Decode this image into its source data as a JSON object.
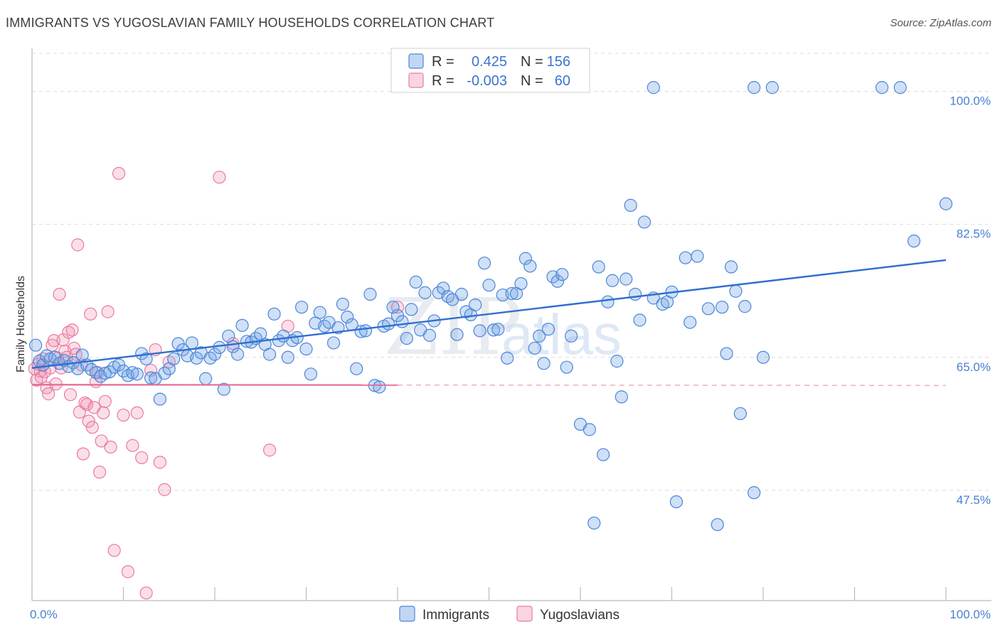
{
  "header": {
    "title": "IMMIGRANTS VS YUGOSLAVIAN FAMILY HOUSEHOLDS CORRELATION CHART",
    "source": "Source: ZipAtlas.com"
  },
  "watermark": {
    "zip": "ZIP",
    "atlas": "atlas"
  },
  "colors": {
    "blue": "#4a86d8",
    "blue_fill": "rgba(120,165,230,0.35)",
    "blue_line": "#2f6fd0",
    "pink": "#e97aa0",
    "pink_fill": "rgba(240,150,180,0.30)",
    "pink_line": "#e36a93",
    "axis_label": "#4a7fd0",
    "grid": "#dcdcdc"
  },
  "legend": {
    "rows": [
      {
        "r_label": "R =",
        "r_value": "0.425",
        "n_label": "N =",
        "n_value": "156"
      },
      {
        "r_label": "R =",
        "r_value": "-0.003",
        "n_label": "N =",
        "n_value": "60"
      }
    ]
  },
  "bottom_legend": {
    "immigrants": "Immigrants",
    "yugoslavians": "Yugoslavians"
  },
  "chart_data": {
    "type": "scatter",
    "title": "IMMIGRANTS VS YUGOSLAVIAN FAMILY HOUSEHOLDS CORRELATION CHART",
    "xlabel": "",
    "ylabel": "Family Households",
    "xlim": [
      0,
      100
    ],
    "ylim": [
      33,
      105
    ],
    "x_tick_labels": [
      "0.0%",
      "100.0%"
    ],
    "y_ticks": [
      {
        "value": 47.5,
        "label": "47.5%"
      },
      {
        "value": 65.0,
        "label": "65.0%"
      },
      {
        "value": 82.5,
        "label": "82.5%"
      },
      {
        "value": 100.0,
        "label": "100.0%"
      }
    ],
    "legend_position": "top-center",
    "series": [
      {
        "name": "Immigrants",
        "r": 0.425,
        "n": 156,
        "trend": {
          "x": [
            0,
            100
          ],
          "y": [
            63.6,
            77.8
          ],
          "dashed_from": null
        },
        "points": [
          [
            0.4,
            66.6
          ],
          [
            0.8,
            64.5
          ],
          [
            1.2,
            64.0
          ],
          [
            1.6,
            65.2
          ],
          [
            2.0,
            64.8
          ],
          [
            2.5,
            65.0
          ],
          [
            3.0,
            64.2
          ],
          [
            3.5,
            64.6
          ],
          [
            4.0,
            63.8
          ],
          [
            4.5,
            64.3
          ],
          [
            5.0,
            63.5
          ],
          [
            5.5,
            65.3
          ],
          [
            6.0,
            64.0
          ],
          [
            6.5,
            63.4
          ],
          [
            7.0,
            63.0
          ],
          [
            7.5,
            62.5
          ],
          [
            8.0,
            62.9
          ],
          [
            8.5,
            63.1
          ],
          [
            9.0,
            63.7
          ],
          [
            9.5,
            64.0
          ],
          [
            10.0,
            63.2
          ],
          [
            10.5,
            62.6
          ],
          [
            11.0,
            63.0
          ],
          [
            11.5,
            62.8
          ],
          [
            12.0,
            65.5
          ],
          [
            12.5,
            64.8
          ],
          [
            13.0,
            62.3
          ],
          [
            13.5,
            62.2
          ],
          [
            14.0,
            59.5
          ],
          [
            14.5,
            62.9
          ],
          [
            15.0,
            63.5
          ],
          [
            15.5,
            64.8
          ],
          [
            16.0,
            66.8
          ],
          [
            16.5,
            66.0
          ],
          [
            17.0,
            65.2
          ],
          [
            17.5,
            66.9
          ],
          [
            18.0,
            64.9
          ],
          [
            18.5,
            65.6
          ],
          [
            19.0,
            62.2
          ],
          [
            19.5,
            64.9
          ],
          [
            20.0,
            65.4
          ],
          [
            20.5,
            66.3
          ],
          [
            21.0,
            60.8
          ],
          [
            21.5,
            67.8
          ],
          [
            22.0,
            66.4
          ],
          [
            22.5,
            65.4
          ],
          [
            23.0,
            69.2
          ],
          [
            23.5,
            67.1
          ],
          [
            24.0,
            67.0
          ],
          [
            24.5,
            67.5
          ],
          [
            25.0,
            68.1
          ],
          [
            25.5,
            66.7
          ],
          [
            26.0,
            65.4
          ],
          [
            26.5,
            70.7
          ],
          [
            27.0,
            67.2
          ],
          [
            27.5,
            67.8
          ],
          [
            28.0,
            65.0
          ],
          [
            28.5,
            67.2
          ],
          [
            29.0,
            67.6
          ],
          [
            29.5,
            71.6
          ],
          [
            30.0,
            66.1
          ],
          [
            30.5,
            62.8
          ],
          [
            31.0,
            69.5
          ],
          [
            31.5,
            70.9
          ],
          [
            32.0,
            69.1
          ],
          [
            32.5,
            69.6
          ],
          [
            33.0,
            66.9
          ],
          [
            33.5,
            68.9
          ],
          [
            34.0,
            72.0
          ],
          [
            34.5,
            70.3
          ],
          [
            35.0,
            69.3
          ],
          [
            35.5,
            63.5
          ],
          [
            36.0,
            68.4
          ],
          [
            36.5,
            68.5
          ],
          [
            37.0,
            73.3
          ],
          [
            37.5,
            61.3
          ],
          [
            38.0,
            61.1
          ],
          [
            38.5,
            69.1
          ],
          [
            39.0,
            69.4
          ],
          [
            39.5,
            71.6
          ],
          [
            40.0,
            70.5
          ],
          [
            40.5,
            69.7
          ],
          [
            41.0,
            67.5
          ],
          [
            41.5,
            71.3
          ],
          [
            42.0,
            74.9
          ],
          [
            42.5,
            68.6
          ],
          [
            43.0,
            73.5
          ],
          [
            43.5,
            67.9
          ],
          [
            44.0,
            69.8
          ],
          [
            44.5,
            73.5
          ],
          [
            45.0,
            74.1
          ],
          [
            45.5,
            73.0
          ],
          [
            46.0,
            72.6
          ],
          [
            46.5,
            68.0
          ],
          [
            47.0,
            73.3
          ],
          [
            47.5,
            71.0
          ],
          [
            48.0,
            70.6
          ],
          [
            48.5,
            71.9
          ],
          [
            49.0,
            68.5
          ],
          [
            49.5,
            77.4
          ],
          [
            50.0,
            74.5
          ],
          [
            50.5,
            68.6
          ],
          [
            51.0,
            68.7
          ],
          [
            51.5,
            73.2
          ],
          [
            52.0,
            64.9
          ],
          [
            52.5,
            73.4
          ],
          [
            53.0,
            73.4
          ],
          [
            53.5,
            74.7
          ],
          [
            54.0,
            78.0
          ],
          [
            54.5,
            77.0
          ],
          [
            55.0,
            66.2
          ],
          [
            55.5,
            67.8
          ],
          [
            56.0,
            64.2
          ],
          [
            56.5,
            68.7
          ],
          [
            57.0,
            75.6
          ],
          [
            57.5,
            75.0
          ],
          [
            58.0,
            75.9
          ],
          [
            58.5,
            63.7
          ],
          [
            59.0,
            67.8
          ],
          [
            60.0,
            56.2
          ],
          [
            61.0,
            55.5
          ],
          [
            61.5,
            43.2
          ],
          [
            62.0,
            76.9
          ],
          [
            62.5,
            52.2
          ],
          [
            63.0,
            72.3
          ],
          [
            63.5,
            75.1
          ],
          [
            64.0,
            64.5
          ],
          [
            64.5,
            59.8
          ],
          [
            65.0,
            75.3
          ],
          [
            65.5,
            85.0
          ],
          [
            66.0,
            73.3
          ],
          [
            66.5,
            69.9
          ],
          [
            67.0,
            82.8
          ],
          [
            68.0,
            72.8
          ],
          [
            69.0,
            72.0
          ],
          [
            69.5,
            72.3
          ],
          [
            70.0,
            73.6
          ],
          [
            70.5,
            46.0
          ],
          [
            71.5,
            78.1
          ],
          [
            72.0,
            69.6
          ],
          [
            72.8,
            78.3
          ],
          [
            74.0,
            71.4
          ],
          [
            75.0,
            43.0
          ],
          [
            75.5,
            71.6
          ],
          [
            76.0,
            65.5
          ],
          [
            76.5,
            76.9
          ],
          [
            77.0,
            73.7
          ],
          [
            77.5,
            57.6
          ],
          [
            78.0,
            71.7
          ],
          [
            79.0,
            47.2
          ],
          [
            80.0,
            65.0
          ],
          [
            68.0,
            100.5
          ],
          [
            79.0,
            100.5
          ],
          [
            81.0,
            100.5
          ],
          [
            93.0,
            100.5
          ],
          [
            95.0,
            100.5
          ],
          [
            96.5,
            80.3
          ],
          [
            100.0,
            85.2
          ]
        ]
      },
      {
        "name": "Yugoslavians",
        "r": -0.003,
        "n": 60,
        "trend": {
          "x": [
            0,
            100
          ],
          "y": [
            61.4,
            61.3
          ],
          "dashed_from": 40
        },
        "points": [
          [
            0.3,
            63.5
          ],
          [
            0.5,
            62.0
          ],
          [
            0.7,
            64.1
          ],
          [
            0.9,
            63.2
          ],
          [
            1.0,
            62.4
          ],
          [
            1.2,
            64.8
          ],
          [
            1.4,
            63.1
          ],
          [
            1.6,
            61.0
          ],
          [
            1.8,
            60.2
          ],
          [
            2.0,
            63.6
          ],
          [
            2.2,
            66.6
          ],
          [
            2.4,
            67.2
          ],
          [
            2.6,
            61.5
          ],
          [
            2.8,
            64.9
          ],
          [
            3.0,
            73.3
          ],
          [
            3.2,
            63.6
          ],
          [
            3.4,
            67.3
          ],
          [
            3.6,
            65.8
          ],
          [
            3.8,
            65.0
          ],
          [
            4.0,
            68.3
          ],
          [
            4.2,
            60.1
          ],
          [
            4.4,
            68.6
          ],
          [
            4.6,
            66.2
          ],
          [
            4.8,
            65.4
          ],
          [
            5.0,
            79.8
          ],
          [
            5.2,
            57.8
          ],
          [
            5.4,
            64.0
          ],
          [
            5.6,
            52.3
          ],
          [
            5.8,
            59.0
          ],
          [
            6.0,
            58.8
          ],
          [
            6.2,
            56.6
          ],
          [
            6.4,
            70.7
          ],
          [
            6.6,
            55.8
          ],
          [
            6.8,
            58.4
          ],
          [
            7.0,
            61.8
          ],
          [
            7.2,
            63.0
          ],
          [
            7.4,
            49.9
          ],
          [
            7.6,
            54.0
          ],
          [
            7.8,
            57.7
          ],
          [
            8.0,
            59.2
          ],
          [
            8.3,
            71.0
          ],
          [
            8.6,
            53.2
          ],
          [
            9.0,
            39.6
          ],
          [
            9.5,
            89.2
          ],
          [
            10.0,
            57.4
          ],
          [
            10.5,
            36.8
          ],
          [
            11.0,
            53.4
          ],
          [
            11.5,
            57.7
          ],
          [
            12.0,
            51.8
          ],
          [
            12.5,
            34.0
          ],
          [
            13.0,
            63.3
          ],
          [
            13.5,
            66.0
          ],
          [
            14.0,
            51.2
          ],
          [
            14.5,
            47.6
          ],
          [
            15.0,
            64.4
          ],
          [
            20.5,
            88.7
          ],
          [
            22.0,
            66.8
          ],
          [
            26.0,
            52.8
          ],
          [
            28.0,
            69.1
          ],
          [
            40.0,
            71.6
          ]
        ]
      }
    ]
  }
}
